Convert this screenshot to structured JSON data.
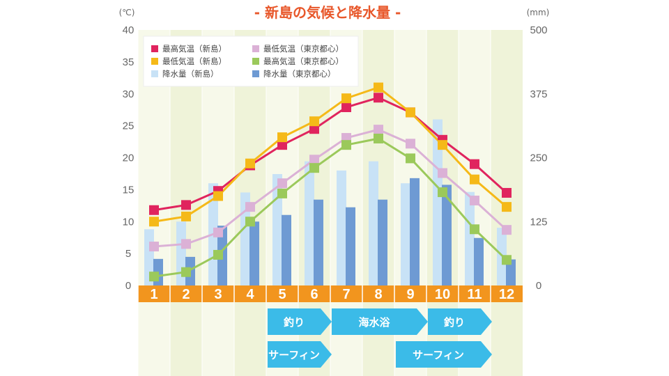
{
  "chart_data": {
    "type": "bar",
    "title": "- 新島の気候と降水量 -",
    "left_unit": "(℃)",
    "right_unit": "(mm)",
    "categories": [
      "1",
      "2",
      "3",
      "4",
      "5",
      "6",
      "7",
      "8",
      "9",
      "10",
      "11",
      "12"
    ],
    "ylim_left": [
      0,
      40
    ],
    "ylim_right": [
      0,
      500
    ],
    "left_ticks": [
      "0",
      "5",
      "10",
      "15",
      "20",
      "25",
      "30",
      "35",
      "40"
    ],
    "right_ticks": [
      "0",
      "125",
      "250",
      "375",
      "500"
    ],
    "line_series": [
      {
        "name": "最高気温（新島）",
        "color": "#e0245e",
        "values": [
          11.8,
          12.6,
          14.8,
          18.8,
          22.0,
          24.5,
          27.9,
          29.4,
          27.1,
          22.8,
          19.0,
          14.5
        ]
      },
      {
        "name": "最低気温（新島）",
        "color": "#f5b918",
        "values": [
          10.0,
          10.8,
          14.0,
          19.1,
          23.2,
          25.7,
          29.3,
          31.0,
          27.1,
          22.0,
          16.6,
          12.3
        ]
      },
      {
        "name": "最低気温（東京都心）",
        "color": "#dbb1d6",
        "values": [
          6.1,
          6.5,
          8.3,
          12.3,
          16.0,
          19.7,
          23.1,
          24.4,
          22.2,
          17.6,
          13.3,
          8.7
        ]
      },
      {
        "name": "最高気温（東京都心）",
        "color": "#9bc95b",
        "values": [
          1.4,
          2.1,
          4.8,
          10.0,
          14.4,
          18.4,
          22.0,
          23.0,
          19.9,
          14.6,
          8.8,
          4.0
        ]
      }
    ],
    "bar_series": [
      {
        "name": "降水量（新島）",
        "color": "#c8e2f6",
        "values": [
          110,
          125,
          200,
          182,
          218,
          243,
          225,
          243,
          200,
          325,
          183,
          113
        ]
      },
      {
        "name": "降水量（東京都心）",
        "color": "#6e9ad3",
        "values": [
          52,
          56,
          117,
          125,
          138,
          168,
          153,
          168,
          210,
          197,
          93,
          51
        ]
      }
    ],
    "activities": [
      {
        "label": "釣り",
        "start_month": 5,
        "end_month": 6
      },
      {
        "label": "海水浴",
        "start_month": 7,
        "end_month": 9
      },
      {
        "label": "釣り",
        "start_month": 10,
        "end_month": 11
      },
      {
        "label": "サーフィン",
        "start_month": 5,
        "end_month": 6
      },
      {
        "label": "サーフィン",
        "start_month": 9,
        "end_month": 11
      }
    ],
    "legend_position": "top-left",
    "grid": false
  }
}
